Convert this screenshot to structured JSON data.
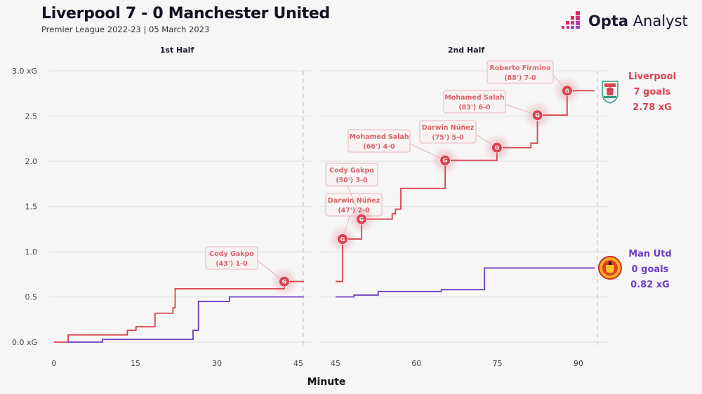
{
  "header": {
    "title": "Liverpool 7 - 0 Manchester United",
    "subtitle": "Premier League 2022-23 | 05 March 2023",
    "logo_bold": "Opta",
    "logo_light": "Analyst"
  },
  "colors": {
    "liverpool": "#d9434f",
    "man_utd": "#6a3fbf",
    "grid": "#e4e4e4",
    "annotation_border": "#e9b4b8"
  },
  "chart_data": {
    "type": "line",
    "step": true,
    "xlabel": "Minute",
    "ylabel": "xG",
    "ylim": [
      0,
      3.0
    ],
    "yticks": [
      0.0,
      0.5,
      1.0,
      1.5,
      2.0,
      2.5,
      3.0
    ],
    "ytick_labels": [
      "0.0 xG",
      "0.5",
      "1.0",
      "1.5",
      "2.0",
      "2.5",
      "3.0 xG"
    ],
    "grid": true,
    "panels": [
      {
        "title": "1st Half",
        "xlim": [
          0,
          46
        ],
        "xticks": [
          0,
          15,
          30,
          45
        ],
        "xtick_labels": [
          "0",
          "15",
          "30",
          "45"
        ]
      },
      {
        "title": "2nd Half",
        "xlim": [
          45,
          93
        ],
        "xticks": [
          45,
          60,
          75,
          90
        ],
        "xtick_labels": [
          "45",
          "60",
          "75",
          "90"
        ]
      }
    ],
    "series": [
      {
        "name": "Liverpool",
        "summary_name": "Liverpool",
        "summary_goals": "7 goals",
        "summary_xg": "2.78 xG",
        "first_half": [
          [
            0,
            0
          ],
          [
            2.6,
            0.08
          ],
          [
            13.5,
            0.13
          ],
          [
            15.1,
            0.17
          ],
          [
            18.6,
            0.32
          ],
          [
            21.9,
            0.38
          ],
          [
            22.3,
            0.59
          ],
          [
            42.4,
            0.67
          ],
          [
            46,
            0.67
          ]
        ],
        "second_half": [
          [
            45,
            0.67
          ],
          [
            46.3,
            1.14
          ],
          [
            49.8,
            1.36
          ],
          [
            55.5,
            1.42
          ],
          [
            56.1,
            1.47
          ],
          [
            57.1,
            1.7
          ],
          [
            65.3,
            2.01
          ],
          [
            74.9,
            2.15
          ],
          [
            81.2,
            2.2
          ],
          [
            82.4,
            2.51
          ],
          [
            87.9,
            2.78
          ],
          [
            93,
            2.78
          ]
        ]
      },
      {
        "name": "Man Utd",
        "summary_name": "Man Utd",
        "summary_goals": "0 goals",
        "summary_xg": "0.82 xG",
        "first_half": [
          [
            2.6,
            0
          ],
          [
            8.9,
            0.03
          ],
          [
            25.6,
            0.13
          ],
          [
            26.6,
            0.45
          ],
          [
            32.3,
            0.5
          ],
          [
            46,
            0.5
          ]
        ],
        "second_half": [
          [
            45,
            0.5
          ],
          [
            48.4,
            0.52
          ],
          [
            52.9,
            0.56
          ],
          [
            64.6,
            0.58
          ],
          [
            72.6,
            0.82
          ],
          [
            93,
            0.82
          ]
        ]
      }
    ],
    "goals": [
      {
        "panel": 0,
        "minute": 42.4,
        "xg": 0.67,
        "line1": "Cody Gakpo",
        "line2": "(43') 1-0",
        "marker": "G"
      },
      {
        "panel": 1,
        "minute": 46.3,
        "xg": 1.14,
        "line1": "Darwin Núñez",
        "line2": "(47') 2-0",
        "marker": "G"
      },
      {
        "panel": 1,
        "minute": 49.8,
        "xg": 1.36,
        "line1": "Cody Gakpo",
        "line2": "(50') 3-0",
        "marker": "G"
      },
      {
        "panel": 1,
        "minute": 65.3,
        "xg": 2.01,
        "line1": "Mohamed Salah",
        "line2": "(66') 4-0",
        "marker": "G"
      },
      {
        "panel": 1,
        "minute": 74.9,
        "xg": 2.15,
        "line1": "Darwin Núñez",
        "line2": "(75') 5-0",
        "marker": "G"
      },
      {
        "panel": 1,
        "minute": 82.4,
        "xg": 2.51,
        "line1": "Mohamed Salah",
        "line2": "(83') 6-0",
        "marker": "G"
      },
      {
        "panel": 1,
        "minute": 87.9,
        "xg": 2.78,
        "line1": "Roberto Firmino",
        "line2": "(88') 7-0",
        "marker": "G"
      }
    ]
  }
}
